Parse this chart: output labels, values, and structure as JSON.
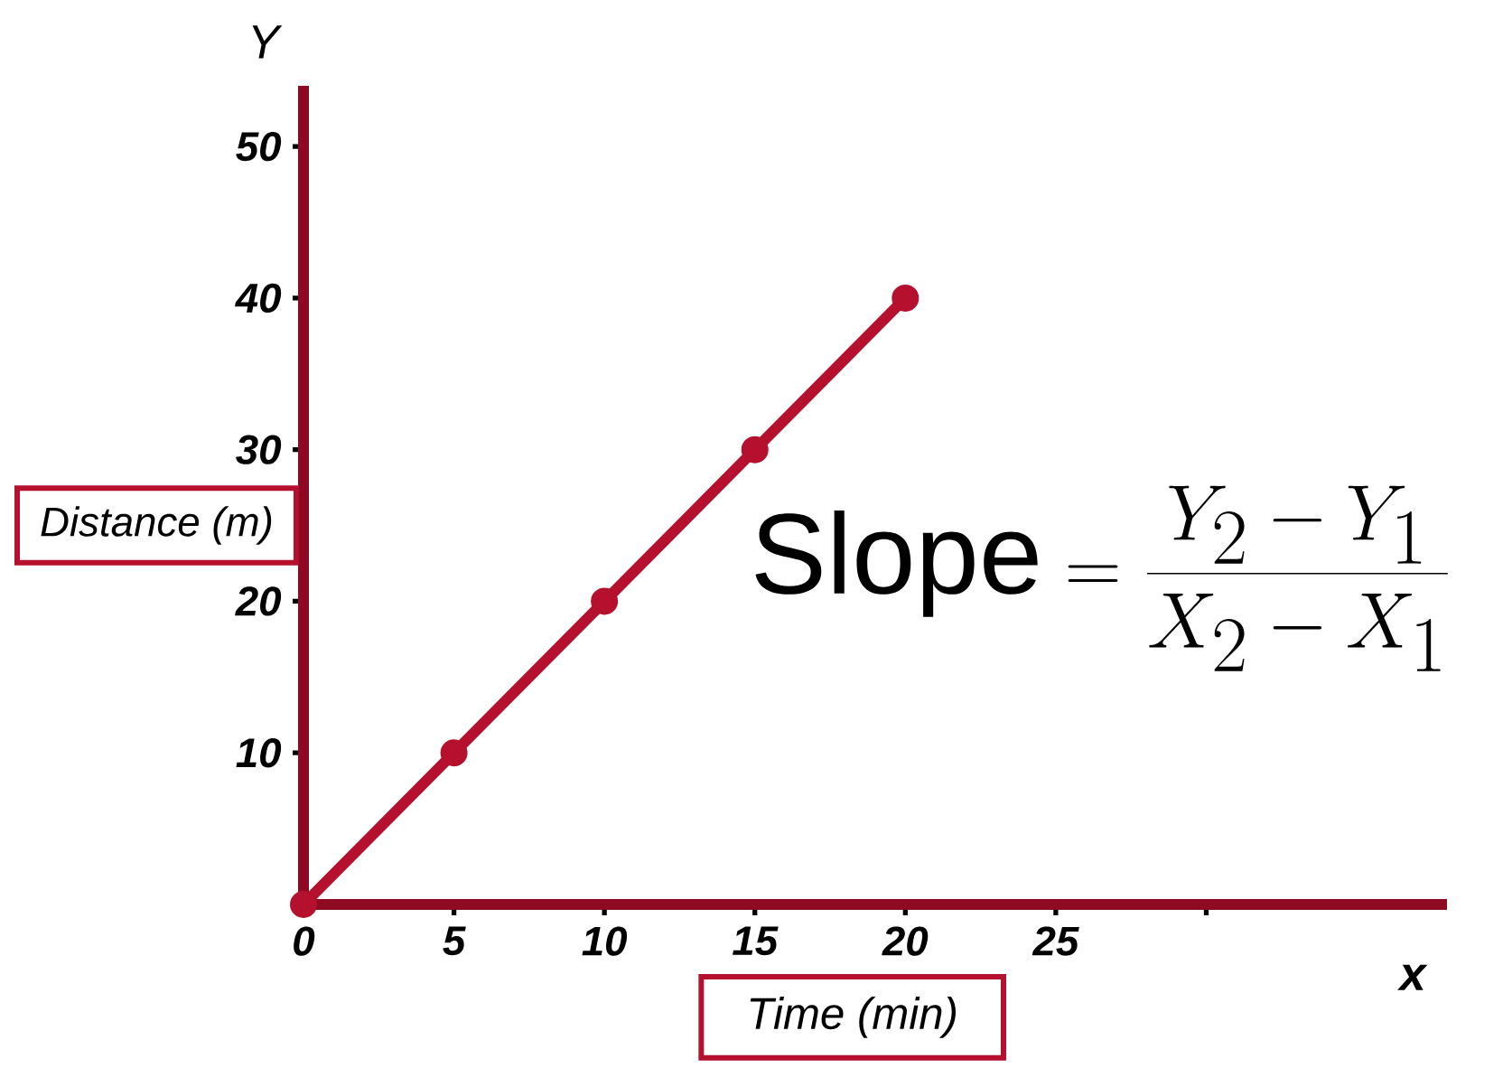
{
  "chart_data": {
    "type": "line",
    "xlabel": "Time (min)",
    "ylabel": "Distance (m)",
    "x": [
      0,
      5,
      10,
      15,
      20
    ],
    "series": [
      {
        "color": "#b5112e",
        "values": [
          0,
          10,
          20,
          30,
          40
        ]
      }
    ],
    "xlim": [
      0,
      38
    ],
    "ylim": [
      0,
      54
    ],
    "xticks": [
      0,
      5,
      10,
      15,
      20,
      25,
      {
        "value": 30,
        "label": null
      }
    ],
    "yticks": [
      10,
      20,
      30,
      40,
      50
    ],
    "marker": "circle",
    "grid": false,
    "annotations": [
      "Y",
      "x",
      "\\mathrm{Slope} = \\frac{Y_2-Y_1}{X_2-X_1}"
    ]
  }
}
